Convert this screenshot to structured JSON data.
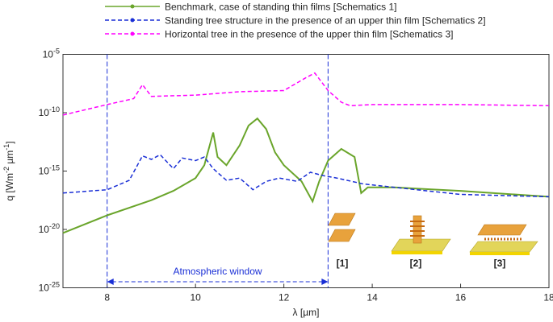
{
  "chart_data": {
    "type": "line",
    "xlabel": "λ [µm]",
    "ylabel": "q [Wm^-2 µm^-1]",
    "xlim": [
      7,
      18
    ],
    "xticks": [
      8,
      10,
      12,
      14,
      16,
      18
    ],
    "ylim": [
      1e-25,
      1e-05
    ],
    "yscale": "log",
    "yticks": [
      {
        "value": 1e-25,
        "label": "10^-25"
      },
      {
        "value": 1e-20,
        "label": "10^-20"
      },
      {
        "value": 1e-15,
        "label": "10^-15"
      },
      {
        "value": 1e-10,
        "label": "10^-10"
      },
      {
        "value": 1e-05,
        "label": "10^-5"
      }
    ],
    "grid": false,
    "legend": "top",
    "series": [
      {
        "name": "Benchmark, case of standing thin films [Schematics 1]",
        "color": "#6aa52b",
        "dash": "solid",
        "x": [
          7,
          8,
          9,
          9.5,
          10,
          10.2,
          10.4,
          10.5,
          10.7,
          11,
          11.2,
          11.4,
          11.6,
          11.8,
          12,
          12.4,
          12.65,
          12.8,
          13,
          13.3,
          13.6,
          13.75,
          13.9,
          14.5,
          16,
          18
        ],
        "values": [
          5e-21,
          1.6e-19,
          3.2e-18,
          2e-17,
          2.5e-16,
          3.2e-15,
          2e-12,
          1.6e-14,
          3.2e-15,
          1.6e-13,
          7.9e-12,
          3.2e-11,
          4e-12,
          4e-14,
          3.2e-15,
          1.3e-16,
          2.5e-18,
          1.3e-16,
          7.9e-15,
          7.9e-14,
          1.6e-14,
          1.3e-17,
          4e-17,
          4e-17,
          2e-17,
          6.3e-18
        ]
      },
      {
        "name": "Standing tree structure in the presence of an upper thin film [Schematics 2]",
        "color": "#1a2fd6",
        "dash": "dashed",
        "x": [
          7,
          8,
          8.5,
          8.8,
          9,
          9.2,
          9.5,
          9.7,
          10,
          10.2,
          10.4,
          10.7,
          11,
          11.3,
          11.6,
          11.9,
          12.3,
          12.6,
          12.9,
          13.2,
          13.8,
          15,
          16,
          18
        ],
        "values": [
          1.3e-17,
          2.5e-17,
          1.6e-16,
          2e-14,
          1e-14,
          2.5e-14,
          1.6e-15,
          1.3e-14,
          7.9e-15,
          1.6e-14,
          1.6e-15,
          1.6e-16,
          2.5e-16,
          2.5e-17,
          1.3e-16,
          2.5e-16,
          1.3e-16,
          7.9e-16,
          4e-16,
          2.5e-16,
          7.9e-17,
          2.5e-17,
          1e-17,
          6.3e-18
        ]
      },
      {
        "name": "Horizontal tree in the presence of the upper thin film [Schematics 3]",
        "color": "#ff00ff",
        "dash": "dashed",
        "x": [
          7,
          8,
          8.6,
          8.8,
          9,
          10,
          11,
          12,
          12.5,
          12.7,
          13,
          13.3,
          13.5,
          14,
          16,
          18
        ],
        "values": [
          6.3e-11,
          5e-10,
          1.6e-09,
          2.5e-08,
          2.5e-09,
          3.2e-09,
          6.3e-09,
          7.9e-09,
          1e-07,
          2.5e-07,
          7.9e-09,
          7.9e-10,
          4e-10,
          5e-10,
          5e-10,
          4e-10
        ]
      }
    ],
    "annotation": {
      "text": "Atmospheric window",
      "x": [
        8,
        13
      ],
      "color": "#1a2fd6"
    },
    "schematic_labels": [
      "[1]",
      "[2]",
      "[3]"
    ]
  }
}
